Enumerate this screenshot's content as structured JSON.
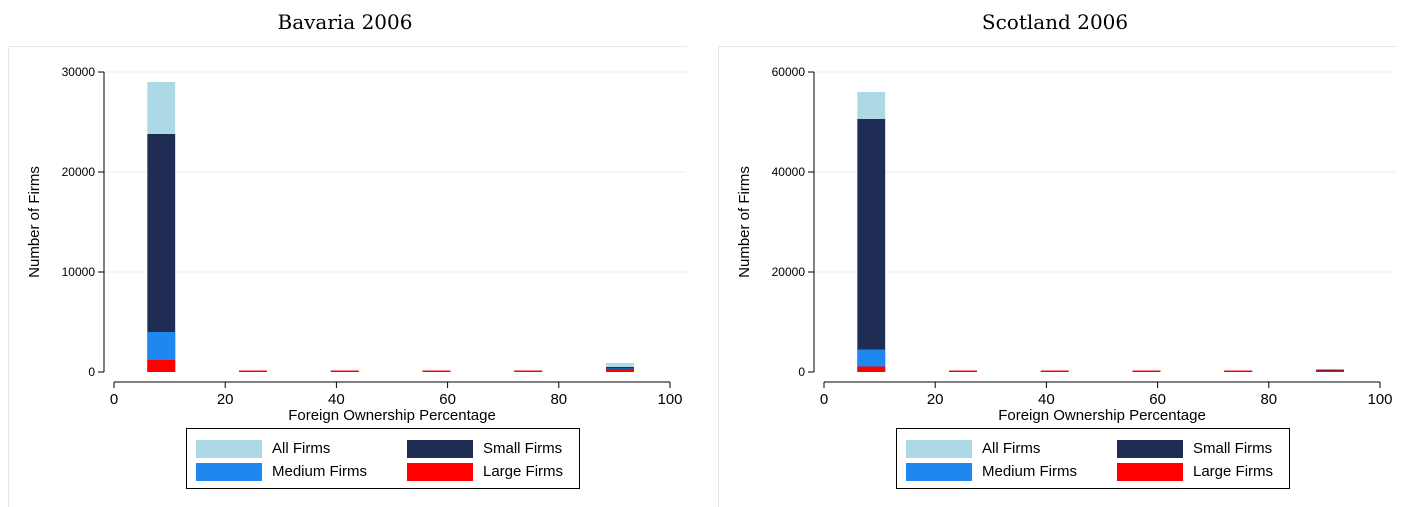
{
  "colors": {
    "all": "#add8e6",
    "small": "#1f2d55",
    "medium": "#1e87f0",
    "large": "#ff0000"
  },
  "legend": {
    "all": "All Firms",
    "small": "Small Firms",
    "medium": "Medium Firms",
    "large": "Large Firms"
  },
  "chart_data": [
    {
      "type": "bar",
      "title": "Bavaria 2006",
      "xlabel": "Foreign Ownership Percentage",
      "ylabel": "Number of Firms",
      "xlim": [
        0,
        100
      ],
      "ylim": [
        0,
        30000
      ],
      "xticks": [
        0,
        20,
        40,
        60,
        80,
        100
      ],
      "yticks": [
        0,
        10000,
        20000,
        30000
      ],
      "grid": true,
      "legend_position": "bottom",
      "bins": [
        [
          6,
          11
        ],
        [
          22.5,
          27.5
        ],
        [
          39,
          44
        ],
        [
          55.5,
          60.5
        ],
        [
          72,
          77
        ],
        [
          88.5,
          93.5
        ]
      ],
      "series": [
        {
          "key": "all",
          "name": "All Firms",
          "values": [
            29000,
            120,
            60,
            130,
            70,
            900
          ]
        },
        {
          "key": "small",
          "name": "Small Firms",
          "values": [
            23800,
            80,
            40,
            90,
            50,
            500
          ]
        },
        {
          "key": "medium",
          "name": "Medium Firms",
          "values": [
            4000,
            60,
            30,
            70,
            40,
            350
          ]
        },
        {
          "key": "large",
          "name": "Large Firms",
          "values": [
            1200,
            50,
            20,
            40,
            30,
            300
          ]
        }
      ]
    },
    {
      "type": "bar",
      "title": "Scotland 2006",
      "xlabel": "Foreign Ownership Percentage",
      "ylabel": "Number of Firms",
      "xlim": [
        0,
        100
      ],
      "ylim": [
        0,
        60000
      ],
      "xticks": [
        0,
        20,
        40,
        60,
        80,
        100
      ],
      "yticks": [
        0,
        20000,
        40000,
        60000
      ],
      "grid": true,
      "legend_position": "bottom",
      "bins": [
        [
          6,
          11
        ],
        [
          22.5,
          27.5
        ],
        [
          39,
          44
        ],
        [
          55.5,
          60.5
        ],
        [
          72,
          77
        ],
        [
          88.5,
          93.5
        ]
      ],
      "series": [
        {
          "key": "all",
          "name": "All Firms",
          "values": [
            56000,
            100,
            150,
            250,
            120,
            600
          ]
        },
        {
          "key": "small",
          "name": "Small Firms",
          "values": [
            50600,
            60,
            100,
            200,
            80,
            450
          ]
        },
        {
          "key": "medium",
          "name": "Medium Firms",
          "values": [
            4500,
            50,
            80,
            150,
            60,
            300
          ]
        },
        {
          "key": "large",
          "name": "Large Firms",
          "values": [
            1100,
            30,
            60,
            120,
            40,
            250
          ]
        }
      ]
    }
  ]
}
